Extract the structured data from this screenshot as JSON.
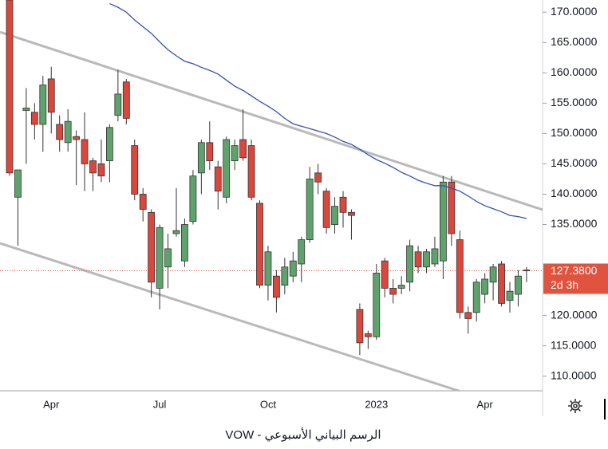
{
  "chart_data": {
    "type": "candlestick",
    "caption": "الرسم البياني الأسبوعي - VOW",
    "categories": [
      null,
      null,
      null,
      null,
      null,
      "Apr",
      null,
      null,
      null,
      null,
      null,
      null,
      null,
      null,
      null,
      null,
      null,
      null,
      "Jul",
      null,
      null,
      null,
      null,
      null,
      null,
      null,
      null,
      null,
      null,
      null,
      null,
      "Oct",
      null,
      null,
      null,
      null,
      null,
      null,
      null,
      null,
      null,
      null,
      null,
      null,
      "2023",
      null,
      null,
      null,
      null,
      null,
      null,
      null,
      null,
      null,
      null,
      null,
      null,
      "Apr",
      null,
      null,
      null,
      null,
      null
    ],
    "open": [
      172,
      139.5,
      153.8,
      153.5,
      151.5,
      159,
      151.5,
      148.5,
      149.5,
      149,
      145.5,
      145,
      145.5,
      153,
      158.5,
      148,
      140,
      137,
      124.5,
      128,
      133.5,
      129,
      135.5,
      143.5,
      148.5,
      144.5,
      139.5,
      145.5,
      149,
      148,
      138.5,
      125,
      126.5,
      125,
      126.5,
      128.5,
      132.5,
      143.5,
      140.5,
      135,
      139.5,
      137,
      121,
      117,
      116.5,
      129,
      124.5,
      124.5,
      125.5,
      130.5,
      128,
      128.5,
      129,
      142,
      132.5,
      120.5,
      120.5,
      123.5,
      125.5,
      128.5,
      122.5,
      123.5,
      127.5
    ],
    "high": [
      172,
      144,
      157.5,
      155,
      159.5,
      161,
      153,
      154,
      150.5,
      153.5,
      146,
      149,
      151.5,
      160.5,
      159,
      149,
      141,
      137.5,
      135,
      133.5,
      141,
      136,
      144,
      149,
      152,
      145.5,
      149.5,
      149,
      154,
      149,
      139,
      131.5,
      127.5,
      129.5,
      130.5,
      133,
      144.5,
      145,
      141,
      139.5,
      140.5,
      137.5,
      122,
      117.5,
      128.5,
      129.5,
      126,
      126.5,
      132.5,
      131.5,
      131,
      133,
      143,
      143,
      134,
      121.5,
      126,
      127,
      128.5,
      129,
      125.5,
      127.5,
      128
    ],
    "low": [
      143,
      131.5,
      145,
      149,
      147,
      150,
      147,
      147,
      141.5,
      140.5,
      140.5,
      142,
      142,
      152,
      151.5,
      139,
      135.5,
      123,
      121,
      124.5,
      133,
      128,
      135,
      140,
      144,
      137.5,
      138.5,
      144,
      145.5,
      139,
      124.5,
      122.5,
      120.5,
      123.5,
      125.5,
      125.5,
      132,
      140,
      133.5,
      133.5,
      134.5,
      132.5,
      113.5,
      114.5,
      116,
      123,
      122,
      123.5,
      124,
      127,
      127,
      128,
      126,
      131.5,
      119.5,
      117,
      119,
      122,
      122.5,
      121.5,
      120.5,
      121.5,
      125.5
    ],
    "close": [
      143.5,
      144,
      154.2,
      151.5,
      158,
      153.5,
      149,
      152,
      149,
      145,
      143.5,
      143,
      151,
      156.5,
      152.5,
      140,
      137.5,
      125.5,
      134.5,
      131,
      134,
      135,
      143,
      148.5,
      145.5,
      140.5,
      149,
      148,
      146,
      139.5,
      125,
      130.5,
      123,
      128,
      129,
      132.5,
      142.5,
      142,
      134.5,
      138,
      137,
      136.5,
      115.5,
      116.5,
      127,
      124.5,
      123.5,
      125,
      131.5,
      128,
      130.5,
      131,
      142,
      133.5,
      120.5,
      119.5,
      125.5,
      126,
      128,
      122,
      124,
      126.5,
      127.38
    ],
    "up_color": "#5fa36c",
    "down_color": "#d9473d",
    "moving_average": {
      "color": "#3451b2",
      "values": [
        null,
        null,
        null,
        null,
        null,
        null,
        null,
        null,
        null,
        null,
        null,
        null,
        171.4,
        170.8,
        170.0,
        168.7,
        167.6,
        166.5,
        165.1,
        163.8,
        162.8,
        161.9,
        161.5,
        160.9,
        160.4,
        159.8,
        158.8,
        157.8,
        157.1,
        156.2,
        155.3,
        154.5,
        153.6,
        152.5,
        151.6,
        151.2,
        150.8,
        150.4,
        150.0,
        149.4,
        148.7,
        148.2,
        147.4,
        146.5,
        145.7,
        145.1,
        144.4,
        143.6,
        143.0,
        142.3,
        141.8,
        141.4,
        141.4,
        141.0,
        140.5,
        139.7,
        138.8,
        138.1,
        137.6,
        137.1,
        136.5,
        136.3,
        136.0
      ]
    },
    "trendlines": [
      {
        "color": "#b9b9b9",
        "values": [
          166.2,
          138.3
        ]
      },
      {
        "color": "#b9b9b9",
        "values": [
          131.4,
          104.0
        ]
      }
    ],
    "last_price": {
      "value": 127.38,
      "label": "127.3800",
      "countdown": "2d 3h",
      "color": "#e0533f"
    },
    "ylim": [
      107.6,
      172.0
    ],
    "yticks": [
      {
        "value": 170,
        "label": "170.0000"
      },
      {
        "value": 165,
        "label": "165.0000"
      },
      {
        "value": 160,
        "label": "160.0000"
      },
      {
        "value": 155,
        "label": "155.0000"
      },
      {
        "value": 150,
        "label": "150.0000"
      },
      {
        "value": 145,
        "label": "145.0000"
      },
      {
        "value": 140,
        "label": "140.0000"
      },
      {
        "value": 135,
        "label": "135.0000"
      },
      {
        "value": 120,
        "label": "120.0000"
      },
      {
        "value": 115,
        "label": "115.0000"
      },
      {
        "value": 110,
        "label": "110.0000"
      }
    ]
  }
}
